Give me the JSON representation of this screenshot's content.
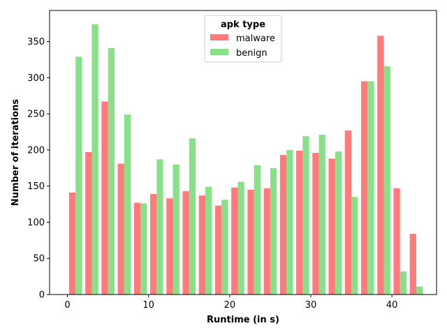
{
  "chart_data": {
    "type": "bar",
    "xlabel": "Runtime (in s)",
    "ylabel": "Number of iterations",
    "xlim": [
      -2.2,
      45.5
    ],
    "ylim": [
      0,
      393
    ],
    "xticks": [
      0,
      10,
      20,
      30,
      40
    ],
    "yticks": [
      0,
      50,
      100,
      150,
      200,
      250,
      300,
      350
    ],
    "grid": false,
    "bar_width": 0.8,
    "legend": {
      "title": "apk type",
      "placement": "top-center"
    },
    "series": [
      {
        "name": "malware",
        "color": "#ff7b7b",
        "x": [
          0.6,
          2.6,
          4.6,
          6.6,
          8.6,
          10.6,
          12.6,
          14.6,
          16.6,
          18.6,
          20.6,
          22.6,
          24.6,
          26.6,
          28.6,
          30.6,
          32.6,
          34.6,
          36.6,
          38.6,
          40.6,
          42.6
        ],
        "values": [
          141,
          197,
          267,
          181,
          127,
          139,
          133,
          143,
          137,
          123,
          148,
          145,
          147,
          193,
          199,
          196,
          188,
          227,
          295,
          358,
          147,
          84
        ]
      },
      {
        "name": "benign",
        "color": "#88e088",
        "x": [
          1.4,
          3.4,
          5.4,
          7.4,
          9.4,
          11.4,
          13.4,
          15.4,
          17.4,
          19.4,
          21.4,
          23.4,
          25.4,
          27.4,
          29.4,
          31.4,
          33.4,
          35.4,
          37.4,
          39.4,
          41.4,
          43.4
        ],
        "values": [
          329,
          374,
          341,
          249,
          126,
          187,
          180,
          216,
          149,
          131,
          156,
          179,
          175,
          200,
          219,
          221,
          198,
          135,
          295,
          316,
          32,
          11
        ]
      }
    ]
  }
}
